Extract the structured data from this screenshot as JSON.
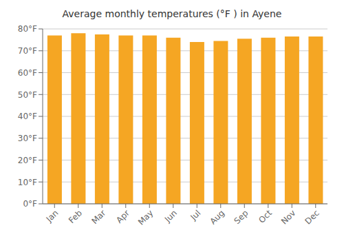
{
  "chart_data": {
    "type": "bar",
    "title": "Average monthly temperatures (°F ) in Ayene",
    "categories": [
      "Jan",
      "Feb",
      "Mar",
      "Apr",
      "May",
      "Jun",
      "Jul",
      "Aug",
      "Sep",
      "Oct",
      "Nov",
      "Dec"
    ],
    "values": [
      77.0,
      78.0,
      77.5,
      77.0,
      77.0,
      76.0,
      74.0,
      74.5,
      75.5,
      76.0,
      76.5,
      76.5
    ],
    "color": "#F5A623",
    "ylim": [
      0,
      80
    ],
    "yticks": [
      {
        "value": 0,
        "label": "0°F"
      },
      {
        "value": 10,
        "label": "10°F"
      },
      {
        "value": 20,
        "label": "20°F"
      },
      {
        "value": 30,
        "label": "30°F"
      },
      {
        "value": 40,
        "label": "40°F"
      },
      {
        "value": 50,
        "label": "50°F"
      },
      {
        "value": 60,
        "label": "60°F"
      },
      {
        "value": 70,
        "label": "70°F"
      },
      {
        "value": 80,
        "label": "80°F"
      }
    ],
    "grid": true
  }
}
